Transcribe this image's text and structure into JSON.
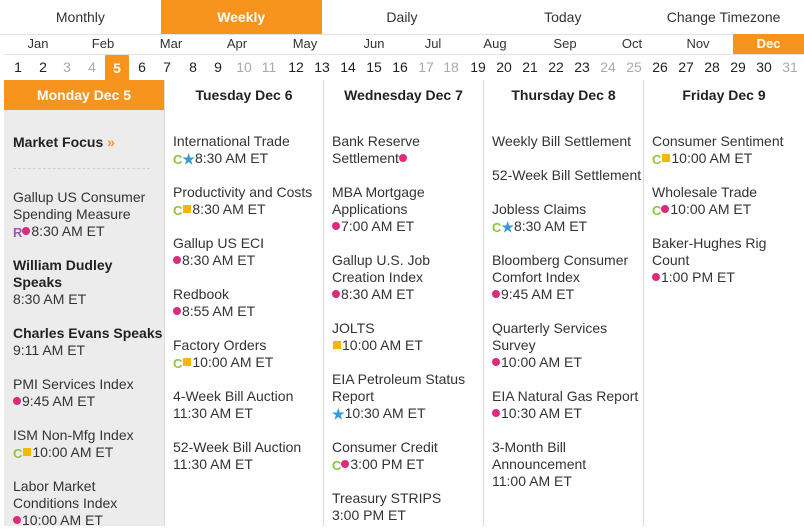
{
  "tabs": [
    "Monthly",
    "Weekly",
    "Daily",
    "Today",
    "Change Timezone"
  ],
  "active_tab": "Weekly",
  "months": [
    "Jan",
    "Feb",
    "Mar",
    "Apr",
    "May",
    "Jun",
    "Jul",
    "Aug",
    "Sep",
    "Oct",
    "Nov",
    "Dec"
  ],
  "active_month": "Dec",
  "days": [
    {
      "n": "1"
    },
    {
      "n": "2"
    },
    {
      "n": "3",
      "dim": true
    },
    {
      "n": "4",
      "dim": true
    },
    {
      "n": "5",
      "active": true
    },
    {
      "n": "6"
    },
    {
      "n": "7"
    },
    {
      "n": "8"
    },
    {
      "n": "9"
    },
    {
      "n": "10",
      "dim": true
    },
    {
      "n": "11",
      "dim": true
    },
    {
      "n": "12"
    },
    {
      "n": "13"
    },
    {
      "n": "14"
    },
    {
      "n": "15"
    },
    {
      "n": "16"
    },
    {
      "n": "17",
      "dim": true
    },
    {
      "n": "18",
      "dim": true
    },
    {
      "n": "19"
    },
    {
      "n": "20"
    },
    {
      "n": "21"
    },
    {
      "n": "22"
    },
    {
      "n": "23"
    },
    {
      "n": "24",
      "dim": true
    },
    {
      "n": "25",
      "dim": true
    },
    {
      "n": "26"
    },
    {
      "n": "27"
    },
    {
      "n": "28"
    },
    {
      "n": "29"
    },
    {
      "n": "30"
    },
    {
      "n": "31",
      "dim": true
    }
  ],
  "market_focus": {
    "label": "Market Focus",
    "arrow": "»"
  },
  "columns": [
    {
      "header": "Monday Dec 5",
      "events": [
        {
          "title": "Gallup US Consumer Spending Measure",
          "icons": [
            "R",
            "dot"
          ],
          "time": "8:30 AM ET"
        },
        {
          "title": "William Dudley Speaks",
          "bold": true,
          "time": "8:30 AM ET"
        },
        {
          "title": "Charles Evans Speaks",
          "bold": true,
          "time": "9:11 AM ET"
        },
        {
          "title": "PMI Services Index",
          "icons": [
            "dot"
          ],
          "time": "9:45 AM ET"
        },
        {
          "title": "ISM Non-Mfg Index",
          "icons": [
            "C",
            "square"
          ],
          "time": "10:00 AM ET"
        },
        {
          "title": "Labor Market Conditions Index",
          "icons": [
            "dot"
          ],
          "time": "10:00 AM ET"
        }
      ]
    },
    {
      "header": "Tuesday Dec 6",
      "events": [
        {
          "title": "International Trade",
          "icons": [
            "C",
            "star"
          ],
          "time": "8:30 AM ET"
        },
        {
          "title": "Productivity and Costs",
          "icons": [
            "C",
            "square"
          ],
          "time": "8:30 AM ET"
        },
        {
          "title": "Gallup US ECI",
          "icons": [
            "dot"
          ],
          "time": "8:30 AM ET"
        },
        {
          "title": "Redbook",
          "icons": [
            "dot"
          ],
          "time": "8:55 AM ET"
        },
        {
          "title": "Factory Orders",
          "icons": [
            "C",
            "square"
          ],
          "time": "10:00 AM ET"
        },
        {
          "title": "4-Week Bill Auction",
          "time": "11:30 AM ET"
        },
        {
          "title": "52-Week Bill Auction",
          "time": "11:30 AM ET"
        }
      ]
    },
    {
      "header": "Wednesday Dec 7",
      "events": [
        {
          "title": "Bank Reserve Settlement",
          "trail_icon": "dot"
        },
        {
          "title": "MBA Mortgage Applications",
          "icons": [
            "dot"
          ],
          "time": "7:00 AM ET"
        },
        {
          "title": "Gallup U.S. Job Creation Index",
          "icons": [
            "dot"
          ],
          "time": "8:30 AM ET"
        },
        {
          "title": "JOLTS",
          "icons": [
            "square"
          ],
          "time": "10:00 AM ET"
        },
        {
          "title": "EIA Petroleum Status Report",
          "icons": [
            "star"
          ],
          "time": "10:30 AM ET"
        },
        {
          "title": "Consumer Credit",
          "icons": [
            "C",
            "dot"
          ],
          "time": "3:00 PM ET"
        },
        {
          "title": "Treasury STRIPS",
          "time": "3:00 PM ET"
        }
      ]
    },
    {
      "header": "Thursday Dec 8",
      "events": [
        {
          "title": "Weekly Bill Settlement"
        },
        {
          "title": "52-Week Bill Settlement"
        },
        {
          "title": "Jobless Claims",
          "icons": [
            "C",
            "star"
          ],
          "time": "8:30 AM ET"
        },
        {
          "title": "Bloomberg Consumer Comfort Index",
          "icons": [
            "dot"
          ],
          "time": "9:45 AM ET"
        },
        {
          "title": "Quarterly Services Survey",
          "icons": [
            "dot"
          ],
          "time": "10:00 AM ET"
        },
        {
          "title": "EIA Natural Gas Report",
          "icons": [
            "dot"
          ],
          "time": "10:30 AM ET"
        },
        {
          "title": "3-Month Bill Announcement",
          "time": "11:00 AM ET"
        }
      ]
    },
    {
      "header": "Friday Dec 9",
      "events": [
        {
          "title": "Consumer Sentiment",
          "icons": [
            "C",
            "square"
          ],
          "time": "10:00 AM ET"
        },
        {
          "title": "Wholesale Trade",
          "icons": [
            "C",
            "dot"
          ],
          "time": "10:00 AM ET"
        },
        {
          "title": "Baker-Hughes Rig Count",
          "icons": [
            "dot"
          ],
          "time": "1:00 PM ET"
        }
      ]
    }
  ],
  "colors": {
    "accent": "#f7941d",
    "dot": "#e0297a",
    "square": "#f5b800",
    "star": "#3a9ad9",
    "c_icon": "#8cc63f",
    "r_icon": "#9b59b6"
  }
}
